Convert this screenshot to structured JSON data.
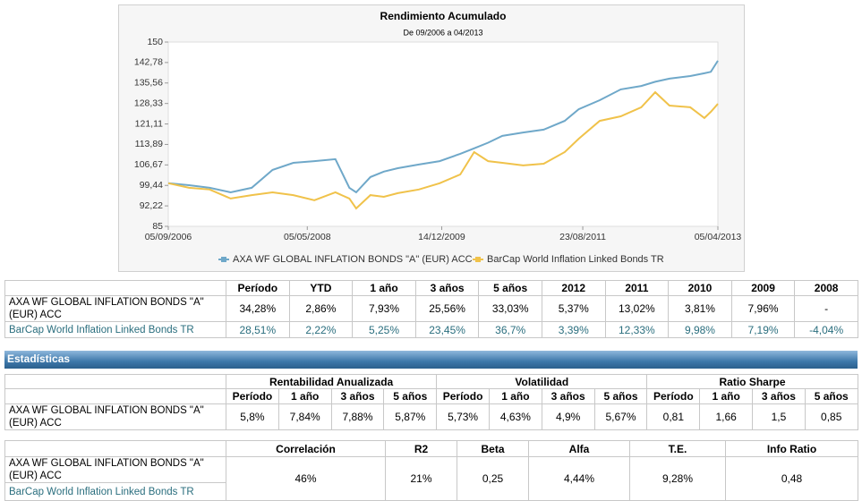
{
  "chart_data": {
    "type": "line",
    "title": "Rendimiento Acumulado",
    "subtitle": "De 09/2006 a 04/2013",
    "x": [
      "05/09/2006",
      "05/12/2006",
      "05/03/2007",
      "05/06/2007",
      "05/09/2007",
      "05/12/2007",
      "05/03/2008",
      "05/06/2008",
      "05/09/2008",
      "05/11/2008",
      "05/12/2008",
      "05/02/2009",
      "05/04/2009",
      "05/06/2009",
      "05/09/2009",
      "05/12/2009",
      "05/03/2010",
      "05/05/2010",
      "05/07/2010",
      "05/09/2010",
      "05/12/2010",
      "05/03/2011",
      "05/06/2011",
      "05/08/2011",
      "05/11/2011",
      "05/02/2012",
      "05/05/2012",
      "05/07/2012",
      "05/09/2012",
      "05/12/2012",
      "05/02/2013",
      "05/03/2013",
      "05/04/2013"
    ],
    "series": [
      {
        "name": "AXA WF GLOBAL INFLATION BONDS \"A\" (EUR) ACC",
        "color": "#6fa8c9",
        "values": [
          100.2,
          99.5,
          98.6,
          97,
          98.6,
          104.9,
          107.4,
          108,
          108.7,
          98.6,
          97,
          102.4,
          104.3,
          105.5,
          106.8,
          108,
          110.6,
          112.5,
          114.5,
          116.9,
          118.1,
          119.1,
          122.2,
          126.3,
          129.5,
          133.3,
          134.5,
          136,
          137.1,
          138,
          139,
          139.5,
          143.4
        ]
      },
      {
        "name": "BarCap World Inflation Linked Bonds TR",
        "color": "#f0c24a",
        "values": [
          100.2,
          98.6,
          98,
          94.8,
          96,
          97,
          96,
          94.2,
          97,
          94.8,
          91.3,
          96,
          95.4,
          96.7,
          98,
          100.2,
          103.3,
          111.2,
          108,
          107.4,
          106.5,
          107.1,
          111.2,
          115.9,
          122.2,
          123.8,
          127,
          132.3,
          127.6,
          127,
          123.2,
          125.4,
          128.2
        ]
      }
    ],
    "xlim": [
      "05/09/2006",
      "05/04/2013"
    ],
    "xticks": [
      "05/09/2006",
      "05/05/2008",
      "14/12/2009",
      "23/08/2011",
      "05/04/2013"
    ],
    "ylim": [
      85,
      150
    ],
    "yticks": [
      85,
      {
        "value": 92.22,
        "label": "92,22"
      },
      {
        "value": 99.44,
        "label": "99,44"
      },
      {
        "value": 106.67,
        "label": "106,67"
      },
      {
        "value": 113.89,
        "label": "113,89"
      },
      {
        "value": 121.11,
        "label": "121,11"
      },
      {
        "value": 128.33,
        "label": "128,33"
      },
      {
        "value": 135.56,
        "label": "135,56"
      },
      {
        "value": 142.78,
        "label": "142,78"
      },
      150
    ],
    "legend": "bottom"
  },
  "returns_table": {
    "headers": [
      "Período",
      "YTD",
      "1 año",
      "3 años",
      "5 años",
      "2012",
      "2011",
      "2010",
      "2009",
      "2008"
    ],
    "rows": [
      {
        "name": "AXA WF GLOBAL INFLATION BONDS \"A\" (EUR) ACC",
        "cells": [
          "34,28%",
          "2,86%",
          "7,93%",
          "25,56%",
          "33,03%",
          "5,37%",
          "13,02%",
          "3,81%",
          "7,96%",
          "-"
        ]
      },
      {
        "name": "BarCap World Inflation Linked Bonds TR",
        "cells": [
          "28,51%",
          "2,22%",
          "5,25%",
          "23,45%",
          "36,7%",
          "3,39%",
          "12,33%",
          "9,98%",
          "7,19%",
          "-4,04%"
        ]
      }
    ]
  },
  "section_title": "Estadísticas",
  "stats_table": {
    "groups": [
      "Rentabilidad Anualizada",
      "Volatilidad",
      "Ratio Sharpe"
    ],
    "headers": [
      "Período",
      "1 año",
      "3 años",
      "5 años",
      "Período",
      "1 año",
      "3 años",
      "5 años",
      "Período",
      "1 año",
      "3 años",
      "5 años"
    ],
    "rows": [
      {
        "name": "AXA WF GLOBAL INFLATION BONDS \"A\" (EUR) ACC",
        "cells": [
          "5,8%",
          "7,84%",
          "7,88%",
          "5,87%",
          "5,73%",
          "4,63%",
          "4,9%",
          "5,67%",
          "0,81",
          "1,66",
          "1,5",
          "0,85"
        ]
      }
    ]
  },
  "risk_table": {
    "headers": [
      "Correlación",
      "R2",
      "Beta",
      "Alfa",
      "T.E.",
      "Info Ratio"
    ],
    "rows": [
      "AXA WF GLOBAL INFLATION BONDS \"A\" (EUR) ACC",
      "BarCap World Inflation Linked Bonds TR"
    ],
    "cells": [
      "46%",
      "21%",
      "0,25",
      "4,44%",
      "9,28%",
      "0,48"
    ]
  }
}
